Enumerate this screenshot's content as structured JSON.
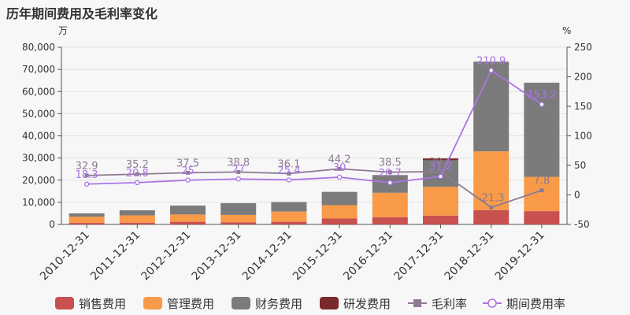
{
  "chart_data": {
    "type": "bar",
    "title": "历年期间费用及毛利率变化",
    "left_axis_unit": "万",
    "right_axis_unit": "%",
    "categories": [
      "2010-12-31",
      "2011-12-31",
      "2012-12-31",
      "2013-12-31",
      "2014-12-31",
      "2015-12-31",
      "2016-12-31",
      "2017-12-31",
      "2018-12-31",
      "2019-12-31"
    ],
    "ylim": [
      0,
      80000
    ],
    "y_ticks": [
      "0",
      "10,000",
      "20,000",
      "30,000",
      "40,000",
      "50,000",
      "60,000",
      "70,000",
      "80,000"
    ],
    "y2lim": [
      -50,
      250
    ],
    "y2_ticks": [
      "-50",
      "0",
      "50",
      "100",
      "150",
      "200",
      "250"
    ],
    "stacked": true,
    "series": [
      {
        "name": "销售费用",
        "kind": "bar",
        "color": "#c8504f",
        "values": [
          700,
          800,
          1200,
          1000,
          1200,
          2700,
          3300,
          4000,
          6500,
          6000
        ]
      },
      {
        "name": "管理费用",
        "kind": "bar",
        "color": "#f89a48",
        "values": [
          2800,
          3300,
          3300,
          3300,
          4600,
          6000,
          11000,
          13000,
          26500,
          15500
        ]
      },
      {
        "name": "财务费用",
        "kind": "bar",
        "color": "#7b7b7b",
        "values": [
          1500,
          2300,
          4000,
          5300,
          4300,
          6000,
          8000,
          12000,
          40500,
          42500
        ]
      },
      {
        "name": "研发费用",
        "kind": "bar",
        "color": "#7a2a2a",
        "values": [
          0,
          0,
          0,
          0,
          0,
          0,
          0,
          800,
          0,
          0
        ]
      },
      {
        "name": "毛利率",
        "kind": "line",
        "axis": "right",
        "color": "#8d7b91",
        "marker": "square",
        "values": [
          32.9,
          35.2,
          37.5,
          38.8,
          36.1,
          44.2,
          38.5,
          39.6,
          -21.3,
          7.8
        ],
        "labels": [
          "32.9",
          "35.2",
          "37.5",
          "38.8",
          "36.1",
          "44.2",
          "38.5",
          "39.6",
          "-21.3",
          "7.8"
        ]
      },
      {
        "name": "期间费用率",
        "kind": "line",
        "axis": "right",
        "color": "#ab73e6",
        "marker": "circle",
        "values": [
          18.3,
          20.8,
          25,
          27,
          25.4,
          30,
          20.7,
          31.2,
          210.9,
          153.2
        ],
        "labels": [
          "18.3",
          "20.8",
          "25",
          "27",
          "25.4",
          "30",
          "20.7",
          "31.2",
          "210.9",
          "153.2"
        ]
      }
    ],
    "grid": true,
    "legend_position": "bottom"
  }
}
